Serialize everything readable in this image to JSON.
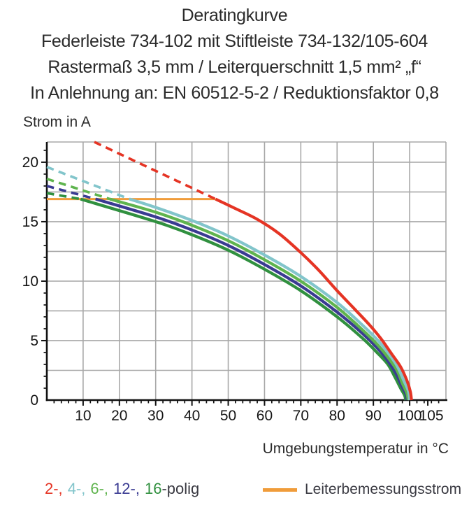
{
  "header": {
    "line1": "Deratingkurve",
    "line2": "Federleiste 734-102 mit Stiftleiste 734-132/105-604",
    "line3": "Rastermaß 3,5 mm / Leiterquerschnitt 1,5 mm² „f“",
    "line4": "In Anlehnung an: EN 60512-5-2 / Reduktionsfaktor 0,8"
  },
  "chart_data": {
    "type": "line",
    "title": "Deratingkurve",
    "xlabel": "Umgebungstemperatur in °C",
    "ylabel": "Strom in A",
    "xlim": [
      0,
      110
    ],
    "ylim": [
      0,
      21.7
    ],
    "grid": {
      "x_step": 10,
      "y_step": 2.5,
      "color": "#a8a8a8",
      "on": true
    },
    "x_major_ticks": [
      10,
      20,
      30,
      40,
      50,
      60,
      70,
      80,
      90,
      100,
      105
    ],
    "x_minor_step": 2,
    "y_major_ticks": [
      0,
      5,
      10,
      15,
      20
    ],
    "y_minor_step": 1,
    "axis_color": "#111111",
    "rated_current_line": {
      "label": "Leiterbemessungsstrom",
      "value_A": 17,
      "x_start": 0,
      "x_end": 46.5,
      "color": "#f09c3a"
    },
    "legend_position": "bottom",
    "series": [
      {
        "name": "16-polig",
        "poles": 16,
        "color": "#30903f",
        "dashed": [
          [
            0,
            17.4
          ],
          [
            9.3,
            16.9
          ]
        ],
        "solid": [
          [
            9.3,
            16.9
          ],
          [
            30,
            15.0
          ],
          [
            40,
            13.9
          ],
          [
            50,
            12.6
          ],
          [
            60,
            11.0
          ],
          [
            70,
            9.2
          ],
          [
            80,
            7.0
          ],
          [
            87,
            5.2
          ],
          [
            91,
            4.0
          ],
          [
            94,
            3.0
          ],
          [
            96,
            1.9
          ],
          [
            97.5,
            1.0
          ],
          [
            98.6,
            0.4
          ],
          [
            98.9,
            0
          ]
        ]
      },
      {
        "name": "12-polig",
        "poles": 12,
        "color": "#3a3b92",
        "dashed": [
          [
            0,
            18.0
          ],
          [
            13.5,
            16.9
          ]
        ],
        "solid": [
          [
            13.5,
            16.9
          ],
          [
            30,
            15.4
          ],
          [
            40,
            14.3
          ],
          [
            50,
            13.0
          ],
          [
            60,
            11.4
          ],
          [
            70,
            9.6
          ],
          [
            80,
            7.4
          ],
          [
            87,
            5.6
          ],
          [
            91,
            4.4
          ],
          [
            94,
            3.3
          ],
          [
            96.3,
            2.2
          ],
          [
            97.8,
            1.2
          ],
          [
            99,
            0.5
          ],
          [
            99.3,
            0
          ]
        ]
      },
      {
        "name": "6-polig",
        "poles": 6,
        "color": "#5fb44e",
        "dashed": [
          [
            0,
            18.6
          ],
          [
            17.4,
            16.9
          ]
        ],
        "solid": [
          [
            17.4,
            16.9
          ],
          [
            30,
            15.8
          ],
          [
            40,
            14.7
          ],
          [
            50,
            13.4
          ],
          [
            60,
            11.8
          ],
          [
            70,
            10.0
          ],
          [
            80,
            7.8
          ],
          [
            87,
            5.9
          ],
          [
            91,
            4.7
          ],
          [
            94,
            3.6
          ],
          [
            96.5,
            2.5
          ],
          [
            98,
            1.4
          ],
          [
            99.2,
            0.6
          ],
          [
            99.6,
            0
          ]
        ]
      },
      {
        "name": "4-polig",
        "poles": 4,
        "color": "#82c5cb",
        "dashed": [
          [
            0,
            19.6
          ],
          [
            22.8,
            16.9
          ]
        ],
        "solid": [
          [
            22.8,
            16.9
          ],
          [
            30,
            16.2
          ],
          [
            40,
            15.1
          ],
          [
            50,
            13.8
          ],
          [
            60,
            12.2
          ],
          [
            70,
            10.4
          ],
          [
            80,
            8.2
          ],
          [
            87,
            6.3
          ],
          [
            91,
            5.1
          ],
          [
            94,
            4.0
          ],
          [
            96.5,
            2.9
          ],
          [
            98.3,
            1.7
          ],
          [
            99.6,
            0.8
          ],
          [
            100,
            0
          ]
        ]
      },
      {
        "name": "2-polig",
        "poles": 2,
        "color": "#e53424",
        "dashed": [
          [
            13.1,
            21.7
          ],
          [
            46.5,
            16.9
          ]
        ],
        "solid": [
          [
            46.5,
            16.9
          ],
          [
            52,
            16.1
          ],
          [
            58,
            15.2
          ],
          [
            64,
            14.0
          ],
          [
            70,
            12.4
          ],
          [
            75,
            10.9
          ],
          [
            80,
            9.2
          ],
          [
            85,
            7.6
          ],
          [
            89,
            6.3
          ],
          [
            92,
            5.2
          ],
          [
            95,
            3.9
          ],
          [
            97.5,
            2.8
          ],
          [
            99.3,
            1.6
          ],
          [
            100.2,
            0.7
          ],
          [
            100.5,
            0
          ]
        ]
      }
    ]
  },
  "legend": {
    "poles_items": [
      {
        "label": "2-,",
        "color": "#e53424"
      },
      {
        "label": "4-,",
        "color": "#82c5cb"
      },
      {
        "label": "6-,",
        "color": "#5fb44e"
      },
      {
        "label": "12-,",
        "color": "#3a3b92"
      },
      {
        "label": "16",
        "color": "#30903f"
      }
    ],
    "poles_suffix": "-polig",
    "rated_label": "Leiterbemessungsstrom"
  }
}
